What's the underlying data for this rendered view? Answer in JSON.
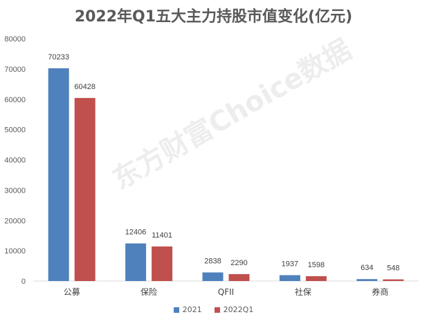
{
  "colors": {
    "series_2021": "#4F81BD",
    "series_2022Q1": "#C0504D",
    "axis": "#d9d9d9",
    "text": "#595959"
  },
  "watermark_text": "东方财富Choice数据",
  "chart_data": {
    "type": "bar",
    "title": "2022年Q1五大主力持股市值变化(亿元)",
    "categories": [
      "公募",
      "保险",
      "QFII",
      "社保",
      "券商"
    ],
    "series": [
      {
        "name": "2021",
        "values": [
          70233,
          12406,
          2838,
          1937,
          634
        ]
      },
      {
        "name": "2022Q1",
        "values": [
          60428,
          11401,
          2290,
          1598,
          548
        ]
      }
    ],
    "yticks": [
      "0",
      "10000",
      "20000",
      "30000",
      "40000",
      "50000",
      "60000",
      "70000",
      "80000"
    ],
    "ylim": [
      0,
      80000
    ],
    "grid": false,
    "legend_position": "bottom"
  }
}
